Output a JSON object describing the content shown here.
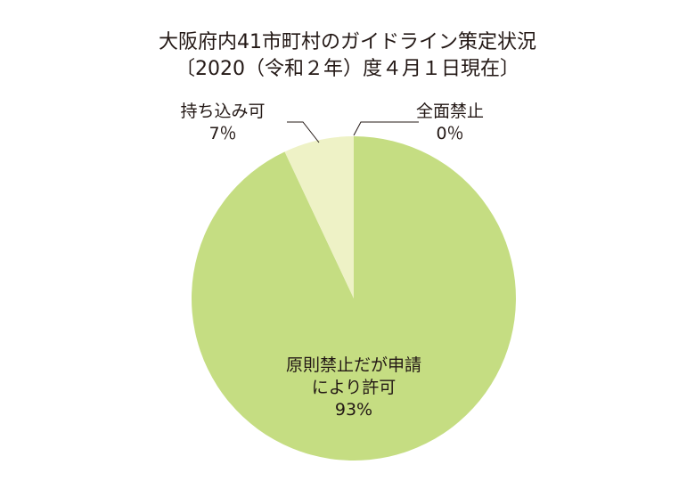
{
  "chart_data": {
    "type": "pie",
    "title": "大阪府内41市町村のガイドライン策定状況",
    "subtitle": "〔2020（令和２年）度４月１日現在〕",
    "categories": [
      "原則禁止だが申請\nにより許可",
      "持ち込み可",
      "全面禁止"
    ],
    "values": [
      93,
      7,
      0
    ],
    "value_labels": [
      "93%",
      "7％",
      "0％"
    ],
    "colors": [
      "#c5dd82",
      "#eef2c6",
      "#eef2c6"
    ]
  }
}
